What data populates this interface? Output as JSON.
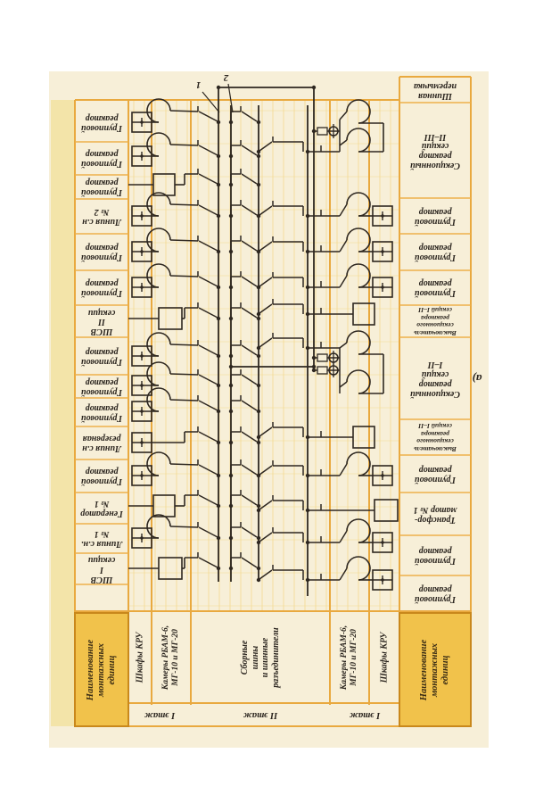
{
  "figure_label": "а)",
  "callouts": [
    "1",
    "2"
  ],
  "left_bays": [
    "Групповой\nреактор",
    "Групповой\nреактор",
    "Групповой\nреактор",
    "Линия с.н\n№ 2",
    "Групповой\nреактор",
    "Групповой\nреактор",
    "ШСВ\nII\nсекции",
    "Групповой\nреактор",
    "Групповой\nреактор",
    "Групповой\nреактор",
    "Линия с.н\nрезервная",
    "Групповой\nреактор",
    "Генератор\n№ 1",
    "Линия с.н.\n№ 1",
    "ШСВ\nI\nсекции"
  ],
  "right_bays": [
    "Шинная\nперемычка",
    "Секционный\nреактор\nсекций\nII–III",
    "Групповой\nреактор",
    "Групповой\nреактор",
    "Групповой\nреактор",
    "Выключатель\nсекционного\nреактора\nсекций I–II",
    "Секционный\nреактор\nсекций\nI–II",
    "Выключатель\nсекционного\nреактора\nсекций I–II",
    "Групповой\nреактор",
    "Трансфор-\nматор № 1",
    "Групповой\nреактор",
    "Групповой\nреактор"
  ],
  "footer": {
    "name_box": "Наименование\nмонтажных\nединиц",
    "shkafy": "Шкафы КРУ",
    "kamery": "Камеры РБАМ-6,\nМГ-10 и МГ-20",
    "sbornye": "Сборные\nшины\nи шинные\nразъединители",
    "floors": [
      "I этаж",
      "II этаж",
      "I этаж"
    ]
  }
}
